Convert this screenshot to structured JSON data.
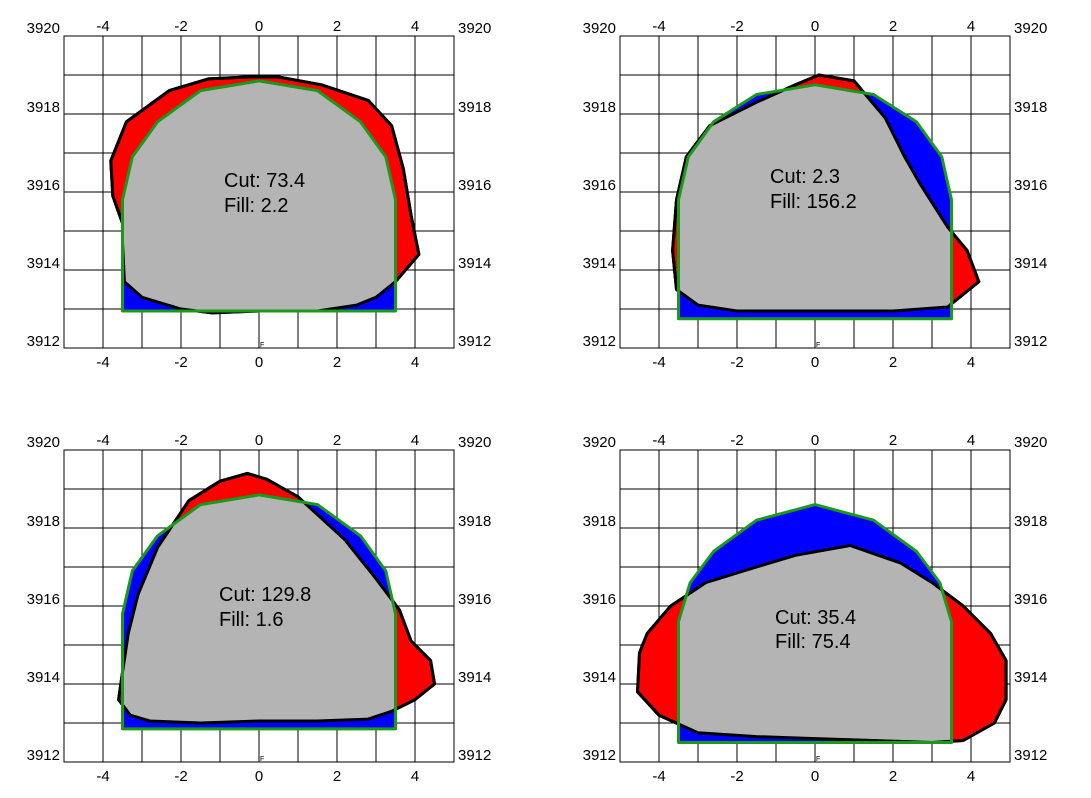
{
  "colors": {
    "cut": "#ff0000",
    "fill": "#0000ff",
    "core": "#b4b4b4",
    "design_line": "#1a9a1a",
    "grid": "#000000"
  },
  "axes": {
    "x_range": [
      -5,
      5
    ],
    "y_range": [
      3912,
      3920
    ],
    "x_ticks": [
      "-4",
      "-2",
      "0",
      "2",
      "4"
    ],
    "y_ticks": [
      "3920",
      "3918",
      "3916",
      "3914",
      "3912"
    ],
    "center_marker": "F"
  },
  "panels": [
    {
      "cut_text": "Cut: 73.4",
      "fill_text": "Fill: 2.2",
      "boundary": [
        [
          -0.3,
          3918.95
        ],
        [
          -1.3,
          3918.9
        ],
        [
          -2.3,
          3918.6
        ],
        [
          -3.4,
          3917.8
        ],
        [
          -3.8,
          3916.8
        ],
        [
          -3.75,
          3915.9
        ],
        [
          -3.5,
          3915.2
        ],
        [
          -3.5,
          3914.7
        ],
        [
          -3.45,
          3913.7
        ],
        [
          -3.0,
          3913.3
        ],
        [
          -2.0,
          3913.0
        ],
        [
          -1.2,
          3912.9
        ],
        [
          0.0,
          3912.95
        ],
        [
          1.5,
          3912.95
        ],
        [
          2.5,
          3913.1
        ],
        [
          3.0,
          3913.3
        ],
        [
          3.5,
          3913.7
        ],
        [
          4.1,
          3914.4
        ],
        [
          3.9,
          3915.4
        ],
        [
          3.7,
          3916.6
        ],
        [
          3.4,
          3917.7
        ],
        [
          2.8,
          3918.35
        ],
        [
          1.6,
          3918.75
        ],
        [
          0.5,
          3918.95
        ]
      ],
      "design": [
        [
          -3.5,
          3912.95
        ],
        [
          -3.5,
          3915.8
        ],
        [
          -3.25,
          3916.9
        ],
        [
          -2.6,
          3917.8
        ],
        [
          -1.5,
          3918.6
        ],
        [
          0.0,
          3918.85
        ],
        [
          1.5,
          3918.6
        ],
        [
          2.6,
          3917.8
        ],
        [
          3.25,
          3916.9
        ],
        [
          3.5,
          3915.8
        ],
        [
          3.5,
          3912.95
        ]
      ]
    },
    {
      "cut_text": "Cut: 2.3",
      "fill_text": "Fill: 156.2",
      "boundary": [
        [
          0.1,
          3919.0
        ],
        [
          1.0,
          3918.85
        ],
        [
          1.8,
          3917.9
        ],
        [
          2.3,
          3916.9
        ],
        [
          2.7,
          3916.2
        ],
        [
          3.4,
          3915.1
        ],
        [
          3.9,
          3914.5
        ],
        [
          4.2,
          3913.7
        ],
        [
          3.4,
          3913.05
        ],
        [
          2.0,
          3912.95
        ],
        [
          0.0,
          3912.95
        ],
        [
          -2.0,
          3912.95
        ],
        [
          -3.0,
          3913.1
        ],
        [
          -3.55,
          3913.5
        ],
        [
          -3.65,
          3914.5
        ],
        [
          -3.55,
          3915.8
        ],
        [
          -3.3,
          3916.9
        ],
        [
          -2.7,
          3917.7
        ],
        [
          -1.5,
          3918.3
        ],
        [
          -0.5,
          3918.75
        ]
      ],
      "design": [
        [
          -3.5,
          3912.75
        ],
        [
          -3.5,
          3915.8
        ],
        [
          -3.25,
          3916.9
        ],
        [
          -2.6,
          3917.8
        ],
        [
          -1.5,
          3918.5
        ],
        [
          0.0,
          3918.75
        ],
        [
          1.5,
          3918.5
        ],
        [
          2.6,
          3917.8
        ],
        [
          3.25,
          3916.9
        ],
        [
          3.5,
          3915.8
        ],
        [
          3.5,
          3912.75
        ]
      ]
    },
    {
      "cut_text": "Cut: 129.8",
      "fill_text": "Fill: 1.6",
      "boundary": [
        [
          -0.3,
          3919.4
        ],
        [
          -1.0,
          3919.2
        ],
        [
          -1.8,
          3918.7
        ],
        [
          -2.6,
          3917.5
        ],
        [
          -3.1,
          3916.3
        ],
        [
          -3.35,
          3915.3
        ],
        [
          -3.5,
          3914.3
        ],
        [
          -3.6,
          3913.6
        ],
        [
          -3.3,
          3913.2
        ],
        [
          -2.8,
          3913.05
        ],
        [
          -1.5,
          3913.0
        ],
        [
          0.0,
          3913.05
        ],
        [
          1.5,
          3913.05
        ],
        [
          2.8,
          3913.1
        ],
        [
          3.4,
          3913.3
        ],
        [
          4.0,
          3913.6
        ],
        [
          4.5,
          3914.0
        ],
        [
          4.4,
          3914.6
        ],
        [
          3.9,
          3915.1
        ],
        [
          3.6,
          3915.9
        ],
        [
          3.0,
          3916.7
        ],
        [
          2.2,
          3917.7
        ],
        [
          1.0,
          3918.8
        ],
        [
          0.2,
          3919.25
        ]
      ],
      "design": [
        [
          -3.5,
          3912.85
        ],
        [
          -3.5,
          3915.8
        ],
        [
          -3.25,
          3916.9
        ],
        [
          -2.6,
          3917.8
        ],
        [
          -1.5,
          3918.6
        ],
        [
          0.0,
          3918.85
        ],
        [
          1.5,
          3918.6
        ],
        [
          2.6,
          3917.8
        ],
        [
          3.25,
          3916.9
        ],
        [
          3.5,
          3915.8
        ],
        [
          3.5,
          3912.85
        ]
      ]
    },
    {
      "cut_text": "Cut: 35.4",
      "fill_text": "Fill: 75.4",
      "boundary": [
        [
          0.9,
          3917.55
        ],
        [
          -0.5,
          3917.3
        ],
        [
          -1.5,
          3917.0
        ],
        [
          -2.8,
          3916.6
        ],
        [
          -3.7,
          3916.0
        ],
        [
          -4.3,
          3915.3
        ],
        [
          -4.5,
          3914.8
        ],
        [
          -4.55,
          3913.8
        ],
        [
          -4.0,
          3913.2
        ],
        [
          -3.0,
          3912.75
        ],
        [
          -1.5,
          3912.65
        ],
        [
          0.0,
          3912.6
        ],
        [
          1.5,
          3912.55
        ],
        [
          3.0,
          3912.5
        ],
        [
          3.8,
          3912.55
        ],
        [
          4.6,
          3913.0
        ],
        [
          4.9,
          3913.6
        ],
        [
          4.9,
          3914.6
        ],
        [
          4.5,
          3915.3
        ],
        [
          3.8,
          3916.0
        ],
        [
          3.0,
          3916.6
        ],
        [
          2.2,
          3917.1
        ]
      ],
      "design": [
        [
          -3.5,
          3912.5
        ],
        [
          -3.5,
          3915.6
        ],
        [
          -3.2,
          3916.6
        ],
        [
          -2.6,
          3917.4
        ],
        [
          -1.5,
          3918.2
        ],
        [
          0.0,
          3918.6
        ],
        [
          1.5,
          3918.2
        ],
        [
          2.6,
          3917.4
        ],
        [
          3.2,
          3916.6
        ],
        [
          3.5,
          3915.6
        ],
        [
          3.5,
          3912.5
        ]
      ]
    }
  ]
}
